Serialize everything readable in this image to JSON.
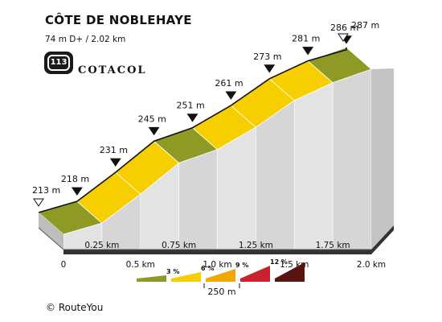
{
  "header": {
    "title": "CÔTE DE NOBLEHAYE",
    "subtitle": "74 m D+ / 2.02 km",
    "badge_number": "113",
    "brand": "COTACOL"
  },
  "footer": {
    "copyright": "© RouteYou"
  },
  "colors": {
    "grade_0_3": "#8f9a25",
    "grade_3_6": "#f7cf00",
    "grade_6_9": "#f0a800",
    "grade_9_12": "#c8232c",
    "grade_12_plus": "#5a1410",
    "wall": "#dcdcdc",
    "base": "#333333"
  },
  "chart_data": {
    "type": "area",
    "title": "CÔTE DE NOBLEHAYE",
    "xlabel": "",
    "ylabel": "",
    "x_unit": "km",
    "y_unit": "m",
    "xlim": [
      0,
      2.0
    ],
    "x_ticks": [
      {
        "value": 0,
        "label": "0"
      },
      {
        "value": 0.25,
        "label": "0.25 km"
      },
      {
        "value": 0.5,
        "label": "0.5 km"
      },
      {
        "value": 0.75,
        "label": "0.75 km"
      },
      {
        "value": 1.0,
        "label": "1.0 km"
      },
      {
        "value": 1.25,
        "label": "1.25 km"
      },
      {
        "value": 1.5,
        "label": "1.5 km"
      },
      {
        "value": 1.75,
        "label": "1.75 km"
      },
      {
        "value": 2.0,
        "label": "2.0 km"
      }
    ],
    "points": [
      {
        "x": 0,
        "y": 213,
        "label": "213 m",
        "marker": "start"
      },
      {
        "x": 0.25,
        "y": 218,
        "label": "218 m",
        "marker": "filled"
      },
      {
        "x": 0.5,
        "y": 231,
        "label": "231 m",
        "marker": "filled"
      },
      {
        "x": 0.75,
        "y": 245,
        "label": "245 m",
        "marker": "filled"
      },
      {
        "x": 1.0,
        "y": 251,
        "label": "251 m",
        "marker": "filled"
      },
      {
        "x": 1.25,
        "y": 261,
        "label": "261 m",
        "marker": "filled"
      },
      {
        "x": 1.5,
        "y": 273,
        "label": "273 m",
        "marker": "filled"
      },
      {
        "x": 1.75,
        "y": 281,
        "label": "281 m",
        "marker": "filled"
      },
      {
        "x": 2.0,
        "y": 286,
        "label": "286 m",
        "marker": "filled"
      },
      {
        "x": 2.02,
        "y": 287,
        "label": "287 m",
        "marker": "end"
      }
    ],
    "segments": [
      {
        "from": 0,
        "to": 0.25,
        "grade": "0-3"
      },
      {
        "from": 0.25,
        "to": 0.5,
        "grade": "3-6"
      },
      {
        "from": 0.5,
        "to": 0.75,
        "grade": "3-6"
      },
      {
        "from": 0.75,
        "to": 1.0,
        "grade": "0-3"
      },
      {
        "from": 1.0,
        "to": 1.25,
        "grade": "3-6"
      },
      {
        "from": 1.25,
        "to": 1.5,
        "grade": "3-6"
      },
      {
        "from": 1.5,
        "to": 1.75,
        "grade": "3-6"
      },
      {
        "from": 1.75,
        "to": 2.02,
        "grade": "0-3"
      }
    ],
    "legend": {
      "placement": "bottom-center",
      "items": [
        {
          "grade": "0-3",
          "label": ""
        },
        {
          "grade": "3-6",
          "label": "3 %"
        },
        {
          "grade": "6-9",
          "label": "6 %"
        },
        {
          "grade": "9-12",
          "label": "9 %"
        },
        {
          "grade": "12+",
          "label": "12 %"
        }
      ],
      "scale_label": "250 m"
    }
  }
}
